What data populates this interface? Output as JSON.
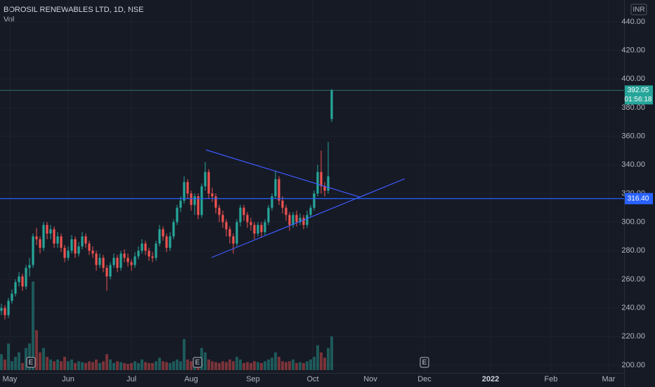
{
  "chart_data": {
    "type": "candlestick",
    "title": "BOROSIL RENEWABLES LTD, 1D, NSE",
    "volume_label": "Vol",
    "currency": "INR",
    "up_color": "#26a69a",
    "down_color": "#ef5350",
    "open": [
      238,
      240,
      235,
      245,
      250,
      258,
      262,
      255,
      268,
      270,
      290,
      288,
      282,
      298,
      292,
      295,
      285,
      290,
      282,
      275,
      280,
      288,
      278,
      283,
      290,
      285,
      280,
      278,
      270,
      275,
      268,
      262,
      270,
      275,
      268,
      278,
      275,
      272,
      270,
      276,
      280,
      285,
      280,
      276,
      275,
      285,
      295,
      290,
      282,
      290,
      300,
      310,
      315,
      328,
      320,
      312,
      318,
      305,
      325,
      335,
      320,
      318,
      310,
      305,
      300,
      295,
      290,
      285,
      300,
      310,
      305,
      300,
      298,
      292,
      298,
      293,
      300,
      310,
      318,
      330,
      315,
      310,
      305,
      298,
      305,
      300,
      303,
      298,
      305,
      310,
      320,
      335,
      325,
      322,
      372
    ],
    "high": [
      243,
      242,
      247,
      253,
      260,
      265,
      264,
      270,
      275,
      292,
      296,
      290,
      300,
      300,
      298,
      297,
      293,
      292,
      284,
      283,
      291,
      290,
      286,
      293,
      292,
      287,
      283,
      280,
      278,
      277,
      270,
      272,
      278,
      277,
      280,
      281,
      278,
      274,
      279,
      283,
      288,
      287,
      282,
      279,
      287,
      298,
      297,
      292,
      293,
      302,
      312,
      318,
      332,
      330,
      322,
      320,
      320,
      327,
      342,
      337,
      324,
      320,
      312,
      308,
      302,
      297,
      292,
      302,
      312,
      312,
      307,
      303,
      300,
      300,
      300,
      302,
      312,
      320,
      336,
      332,
      318,
      312,
      307,
      307,
      308,
      306,
      305,
      308,
      312,
      322,
      340,
      350,
      328,
      356,
      393
    ],
    "low": [
      235,
      232,
      233,
      243,
      248,
      255,
      252,
      253,
      262,
      268,
      284,
      278,
      280,
      288,
      288,
      282,
      282,
      279,
      272,
      273,
      278,
      275,
      276,
      281,
      282,
      277,
      275,
      266,
      268,
      265,
      252,
      260,
      268,
      265,
      266,
      272,
      269,
      266,
      268,
      274,
      278,
      277,
      273,
      272,
      273,
      283,
      287,
      279,
      280,
      288,
      298,
      307,
      313,
      316,
      308,
      305,
      302,
      303,
      322,
      316,
      314,
      306,
      300,
      296,
      290,
      285,
      278,
      283,
      297,
      301,
      296,
      294,
      288,
      290,
      289,
      291,
      298,
      308,
      316,
      312,
      306,
      301,
      294,
      296,
      297,
      298,
      295,
      296,
      303,
      308,
      318,
      320,
      318,
      320,
      370
    ],
    "close": [
      240,
      235,
      245,
      250,
      258,
      262,
      255,
      268,
      270,
      290,
      288,
      282,
      298,
      292,
      295,
      285,
      290,
      282,
      275,
      280,
      288,
      278,
      283,
      290,
      285,
      280,
      278,
      270,
      275,
      268,
      262,
      270,
      275,
      268,
      278,
      275,
      272,
      270,
      276,
      280,
      285,
      280,
      276,
      275,
      285,
      295,
      290,
      282,
      290,
      300,
      310,
      315,
      328,
      320,
      312,
      318,
      305,
      325,
      335,
      320,
      318,
      310,
      305,
      300,
      295,
      290,
      285,
      300,
      310,
      305,
      300,
      298,
      292,
      298,
      293,
      300,
      310,
      318,
      330,
      315,
      310,
      305,
      298,
      305,
      300,
      303,
      298,
      305,
      310,
      320,
      335,
      325,
      322,
      332,
      392.05
    ],
    "volume": [
      18,
      12,
      30,
      10,
      15,
      20,
      8,
      25,
      30,
      100,
      45,
      20,
      25,
      15,
      12,
      10,
      12,
      10,
      15,
      10,
      12,
      8,
      10,
      9,
      8,
      10,
      9,
      12,
      8,
      10,
      18,
      12,
      8,
      10,
      9,
      8,
      7,
      8,
      10,
      8,
      12,
      9,
      8,
      8,
      10,
      14,
      10,
      9,
      8,
      10,
      12,
      10,
      35,
      12,
      10,
      9,
      10,
      25,
      20,
      12,
      10,
      9,
      8,
      10,
      9,
      12,
      10,
      15,
      12,
      8,
      9,
      8,
      10,
      9,
      8,
      10,
      12,
      14,
      20,
      15,
      10,
      9,
      10,
      12,
      8,
      9,
      8,
      10,
      12,
      15,
      28,
      20,
      14,
      25,
      38
    ],
    "ylim": [
      194.6,
      455.2
    ],
    "yticks": [
      {
        "value": 200,
        "label": "200.00"
      },
      {
        "value": 220,
        "label": "220.00"
      },
      {
        "value": 240,
        "label": "240.00"
      },
      {
        "value": 260,
        "label": "260.00"
      },
      {
        "value": 280,
        "label": "280.00"
      },
      {
        "value": 300,
        "label": "300.00"
      },
      {
        "value": 320,
        "label": "320.00"
      },
      {
        "value": 340,
        "label": "340.00"
      },
      {
        "value": 360,
        "label": "360.00"
      },
      {
        "value": 380,
        "label": "380.00"
      },
      {
        "value": 400,
        "label": "400.00"
      },
      {
        "value": 420,
        "label": "420.00"
      },
      {
        "value": 440,
        "label": "440.00"
      }
    ],
    "xticks": [
      "May",
      "Jun",
      "Jul",
      "Aug",
      "Sep",
      "Oct",
      "Nov",
      "Dec",
      "2022",
      "Feb",
      "Mar"
    ],
    "last_price": 392.05,
    "countdown": "01:56:18",
    "level": {
      "value": 316.4,
      "label": "316.40"
    },
    "events": [
      "E",
      "E",
      "E"
    ]
  }
}
